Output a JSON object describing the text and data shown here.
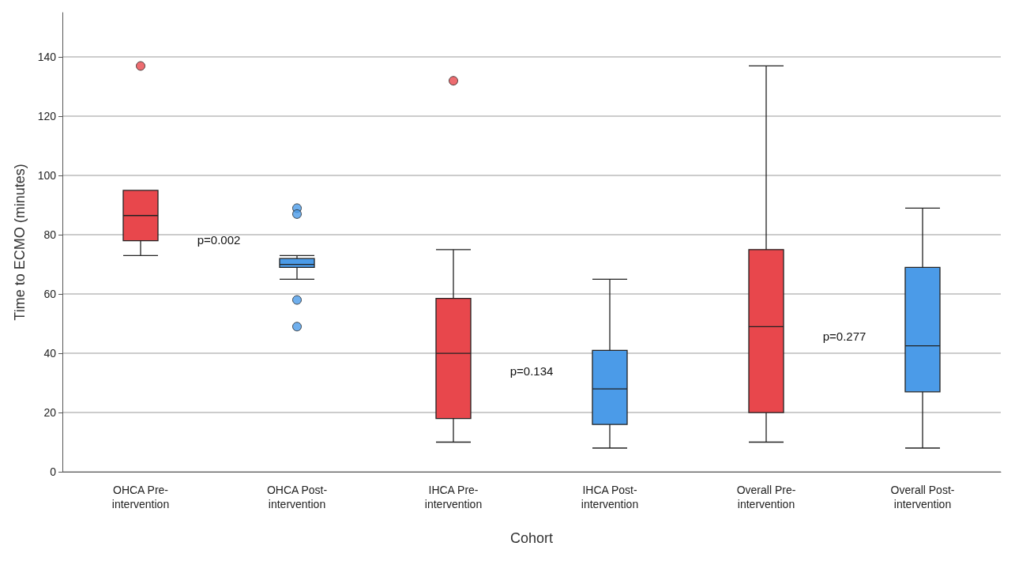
{
  "chart_data": {
    "type": "box",
    "xlabel": "Cohort",
    "ylabel": "Time to ECMO (minutes)",
    "categories": [
      "OHCA Pre-intervention",
      "OHCA Post-intervention",
      "IHCA Pre-intervention",
      "IHCA Post-intervention",
      "Overall Pre-intervention",
      "Overall Post-intervention"
    ],
    "colors": [
      "#e8474c",
      "#4b9be8",
      "#e8474c",
      "#4b9be8",
      "#e8474c",
      "#4b9be8"
    ],
    "boxes": [
      {
        "low": 73,
        "q1": 78,
        "median": 86.5,
        "q3": 95,
        "high": 95,
        "outliers": [
          137
        ]
      },
      {
        "low": 65,
        "q1": 69,
        "median": 70,
        "q3": 72,
        "high": 73,
        "outliers": [
          89,
          87,
          58,
          49
        ]
      },
      {
        "low": 10,
        "q1": 18,
        "median": 40,
        "q3": 58.5,
        "high": 75,
        "outliers": [
          132
        ]
      },
      {
        "low": 8,
        "q1": 16,
        "median": 28,
        "q3": 41,
        "high": 65
      },
      {
        "low": 10,
        "q1": 20,
        "median": 49,
        "q3": 75,
        "high": 137
      },
      {
        "low": 8,
        "q1": 27,
        "median": 42.5,
        "q3": 69,
        "high": 89
      }
    ],
    "ylim": [
      0,
      155
    ],
    "yticks": [
      0,
      20,
      40,
      60,
      80,
      100,
      120,
      140
    ],
    "grid": "y",
    "marker": "circle",
    "annotations": [
      "p=0.002",
      "p=0.134",
      "p=0.277"
    ]
  }
}
